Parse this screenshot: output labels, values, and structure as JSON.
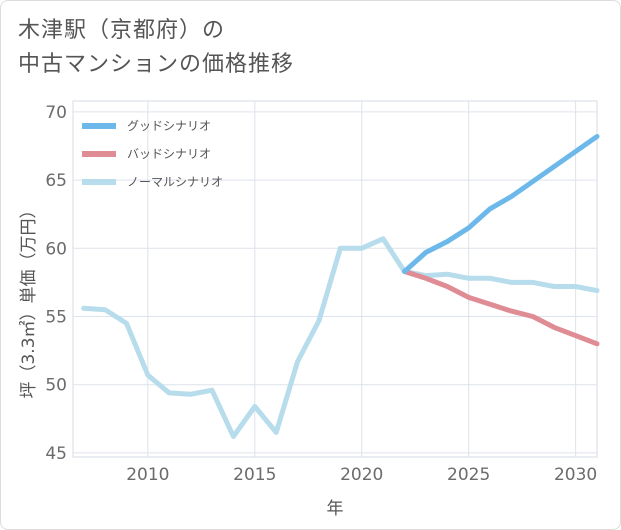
{
  "title": {
    "line1": "木津駅（京都府）の",
    "line2": "中古マンションの価格推移"
  },
  "chart_data": {
    "type": "line",
    "xlabel": "年",
    "ylabel": "坪（3.3㎡）単価（万円）",
    "xlim": [
      2006.5,
      2031
    ],
    "ylim": [
      44.7,
      70.8
    ],
    "xticks": [
      2010,
      2015,
      2020,
      2025,
      2030
    ],
    "yticks": [
      45,
      50,
      55,
      60,
      65,
      70
    ],
    "legend_position": "top-left",
    "colors": {
      "good": "#6db8ea",
      "bad": "#df8c94",
      "normal": "#b7dcec"
    },
    "series": [
      {
        "key": "normal",
        "name": "ノーマルシナリオ",
        "x": [
          2007,
          2008,
          2009,
          2010,
          2011,
          2012,
          2013,
          2014,
          2015,
          2016,
          2017,
          2018,
          2019,
          2020,
          2021,
          2022,
          2023,
          2024,
          2025,
          2026,
          2027,
          2028,
          2029,
          2030,
          2031
        ],
        "values": [
          55.6,
          55.5,
          54.5,
          50.7,
          49.4,
          49.3,
          49.6,
          46.2,
          48.4,
          46.5,
          51.7,
          54.7,
          60.0,
          60.0,
          60.7,
          58.3,
          58.0,
          58.1,
          57.8,
          57.8,
          57.5,
          57.5,
          57.2,
          57.2,
          56.9
        ]
      },
      {
        "key": "bad",
        "name": "バッドシナリオ",
        "x": [
          2022,
          2023,
          2024,
          2025,
          2026,
          2027,
          2028,
          2029,
          2030,
          2031
        ],
        "values": [
          58.3,
          57.8,
          57.2,
          56.4,
          55.9,
          55.4,
          55.0,
          54.2,
          53.6,
          53.0
        ]
      },
      {
        "key": "good",
        "name": "グッドシナリオ",
        "x": [
          2022,
          2023,
          2024,
          2025,
          2026,
          2027,
          2028,
          2029,
          2030,
          2031
        ],
        "values": [
          58.3,
          59.7,
          60.5,
          61.5,
          62.9,
          63.8,
          64.9,
          66.0,
          67.1,
          68.2
        ]
      }
    ],
    "legend_order": [
      "good",
      "bad",
      "normal"
    ]
  }
}
